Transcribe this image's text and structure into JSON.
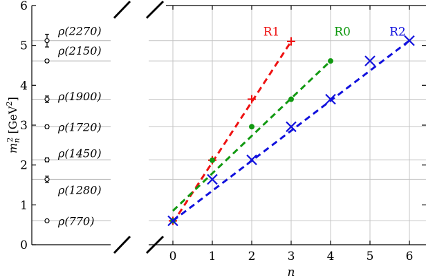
{
  "chart_data": [
    {
      "type": "scatter",
      "panel": "experimental-masses",
      "ylabel": "m_n^2 [GeV^2]",
      "ylim": [
        0,
        6
      ],
      "y_ticks": [
        "0",
        "1",
        "2",
        "3",
        "4",
        "5",
        "6"
      ],
      "states": [
        {
          "label": "ρ(770)",
          "y": 0.6,
          "err": 0.0,
          "text_y": 0.6
        },
        {
          "label": "ρ(1280)",
          "y": 1.64,
          "err": 0.08,
          "text_y": 1.38
        },
        {
          "label": "ρ(1450)",
          "y": 2.13,
          "err": 0.05,
          "text_y": 2.3
        },
        {
          "label": "ρ(1720)",
          "y": 2.96,
          "err": 0.04,
          "text_y": 2.96
        },
        {
          "label": "ρ(1900)",
          "y": 3.65,
          "err": 0.08,
          "text_y": 3.73
        },
        {
          "label": "ρ(2150)",
          "y": 4.61,
          "err": 0.04,
          "text_y": 4.87
        },
        {
          "label": "ρ(2270)",
          "y": 5.12,
          "err": 0.16,
          "text_y": 5.37
        }
      ]
    },
    {
      "type": "line",
      "panel": "regge-trajectories",
      "xlabel": "n",
      "xlim": [
        -0.6,
        6.2
      ],
      "ylim": [
        0,
        6
      ],
      "x_ticks": [
        "0",
        "1",
        "2",
        "3",
        "4",
        "5",
        "6"
      ],
      "grid": true,
      "series": [
        {
          "name": "R1",
          "color": "#ee1111",
          "marker": "plus",
          "x": [
            0,
            1,
            2,
            3
          ],
          "y": [
            0.6,
            2.12,
            3.65,
            5.1
          ],
          "fit": [
            [
              0,
              0.55
            ],
            [
              3,
              5.1
            ]
          ],
          "label_pos": [
            2.5,
            5.35
          ]
        },
        {
          "name": "R0",
          "color": "#119911",
          "marker": "dot",
          "x": [
            0,
            1,
            2,
            3,
            4
          ],
          "y": [
            0.6,
            2.12,
            2.96,
            3.65,
            4.61
          ],
          "fit": [
            [
              0,
              0.85
            ],
            [
              4,
              4.61
            ]
          ],
          "label_pos": [
            4.3,
            5.35
          ]
        },
        {
          "name": "R2",
          "color": "#1111dd",
          "marker": "cross",
          "x": [
            0,
            1,
            2,
            3,
            4,
            5,
            6
          ],
          "y": [
            0.6,
            1.64,
            2.13,
            2.96,
            3.65,
            4.61,
            5.12
          ],
          "fit": [
            [
              0,
              0.6
            ],
            [
              6,
              5.12
            ]
          ],
          "label_pos": [
            5.7,
            5.35
          ]
        }
      ]
    }
  ]
}
